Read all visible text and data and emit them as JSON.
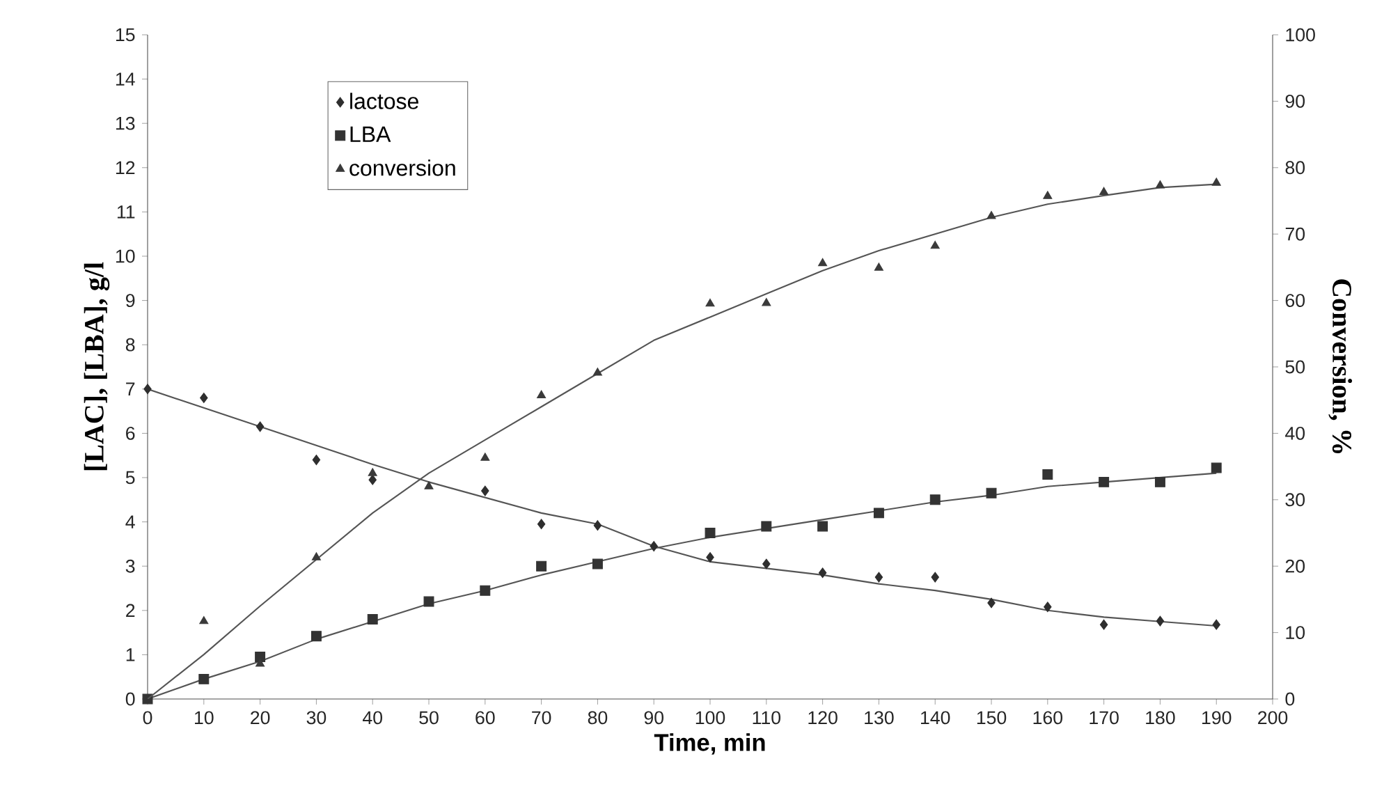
{
  "chart_data": {
    "type": "scatter",
    "xlabel": "Time, min",
    "ylabel": "[LAC], [LBA], g/l",
    "y2label": "Conversion, %",
    "x": [
      0,
      10,
      20,
      30,
      40,
      50,
      60,
      70,
      80,
      90,
      100,
      110,
      120,
      130,
      140,
      150,
      160,
      170,
      180,
      190
    ],
    "series": [
      {
        "name": "lactose",
        "marker": "diamond",
        "color": "#2e2e2e",
        "values": [
          7.0,
          6.8,
          6.15,
          5.4,
          4.95,
          null,
          4.7,
          3.95,
          3.92,
          3.45,
          3.2,
          3.05,
          2.85,
          2.75,
          2.75,
          2.17,
          2.08,
          1.68,
          1.76,
          1.68
        ]
      },
      {
        "name": "LBA",
        "marker": "square",
        "color": "#333333",
        "values": [
          0,
          0.45,
          0.95,
          1.42,
          1.8,
          2.2,
          2.45,
          3.0,
          3.05,
          null,
          3.75,
          3.9,
          3.9,
          4.2,
          4.5,
          4.65,
          5.07,
          4.9,
          4.9,
          5.22
        ]
      },
      {
        "name": "conversion",
        "marker": "triangle",
        "color": "#3a3a3a",
        "axis": "y2",
        "values": [
          null,
          11.7,
          5.3,
          21.3,
          34,
          32,
          36.3,
          45.7,
          49.1,
          null,
          59.5,
          59.6,
          65.6,
          64.9,
          68.2,
          72.7,
          75.7,
          76.3,
          77.3,
          77.7
        ]
      },
      {
        "type": "line",
        "color": "#555555",
        "x": [
          0,
          20,
          40,
          50,
          60,
          70,
          80,
          90,
          100,
          110,
          120,
          130,
          140,
          150,
          160,
          170,
          180,
          190
        ],
        "values": [
          7.0,
          6.15,
          5.3,
          4.9,
          4.55,
          4.2,
          3.95,
          3.45,
          3.1,
          2.95,
          2.8,
          2.6,
          2.45,
          2.25,
          2.0,
          1.85,
          1.75,
          1.65
        ]
      },
      {
        "type": "line",
        "color": "#555555",
        "x": [
          0,
          10,
          20,
          30,
          40,
          50,
          60,
          70,
          80,
          90,
          100,
          110,
          120,
          130,
          140,
          150,
          160,
          170,
          180,
          190
        ],
        "values": [
          0,
          0.45,
          0.85,
          1.35,
          1.75,
          2.15,
          2.45,
          2.8,
          3.1,
          3.4,
          3.65,
          3.85,
          4.05,
          4.25,
          4.45,
          4.6,
          4.8,
          4.9,
          5.0,
          5.1
        ]
      },
      {
        "type": "line",
        "color": "#555555",
        "axis": "y2",
        "x": [
          0,
          10,
          20,
          30,
          40,
          50,
          60,
          70,
          80,
          90,
          100,
          110,
          120,
          130,
          140,
          150,
          160,
          170,
          180,
          190
        ],
        "values": [
          0,
          6.7,
          14,
          21,
          28,
          34,
          39,
          44,
          49,
          54,
          57.5,
          61,
          64.5,
          67.5,
          70,
          72.5,
          74.5,
          75.8,
          77,
          77.5
        ]
      }
    ],
    "xlim": [
      0,
      200
    ],
    "xticks": [
      0,
      10,
      20,
      30,
      40,
      50,
      60,
      70,
      80,
      90,
      100,
      110,
      120,
      130,
      140,
      150,
      160,
      170,
      180,
      190,
      200
    ],
    "ylim": [
      0,
      15
    ],
    "yticks": [
      0,
      1,
      2,
      3,
      4,
      5,
      6,
      7,
      8,
      9,
      10,
      11,
      12,
      13,
      14,
      15
    ],
    "y2lim": [
      0,
      100
    ],
    "y2ticks": [
      0,
      10,
      20,
      30,
      40,
      50,
      60,
      70,
      80,
      90,
      100
    ],
    "legend": "top left",
    "grid": false,
    "line_style": "solid"
  }
}
